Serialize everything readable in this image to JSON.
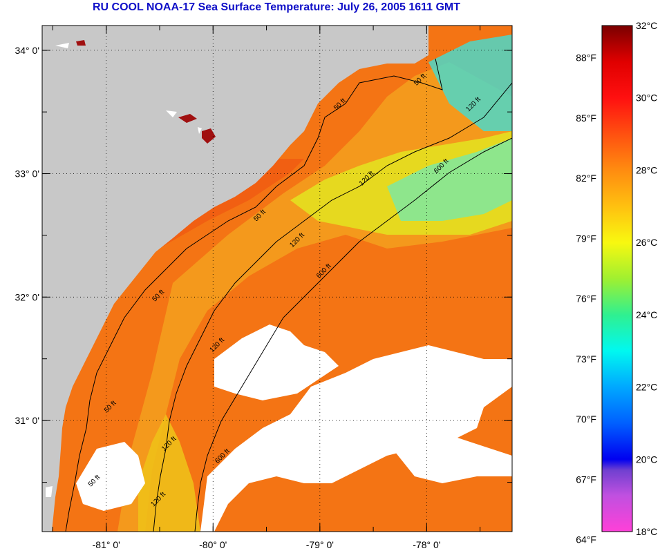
{
  "title": "RU COOL  NOAA-17  Sea Surface Temperature:  July 26, 2005 1611 GMT",
  "map": {
    "lon_range": [
      -81.6,
      -77.2
    ],
    "lat_range": [
      30.1,
      34.2
    ],
    "lat_ticks": [
      {
        "value": 34,
        "label": "34° 0'"
      },
      {
        "value": 33,
        "label": "33° 0'"
      },
      {
        "value": 32,
        "label": "32° 0'"
      },
      {
        "value": 31,
        "label": "31° 0'"
      }
    ],
    "lon_ticks": [
      {
        "value": -81,
        "label": "-81° 0'"
      },
      {
        "value": -80,
        "label": "-80° 0'"
      },
      {
        "value": -79,
        "label": "-79° 0'"
      },
      {
        "value": -78,
        "label": "-78° 0'"
      }
    ],
    "minor_lat_step": 0.5,
    "minor_lon_step": 0.5,
    "gridlines": "dotted",
    "colors": {
      "land": "#c8c8c8",
      "cloud": "#ffffff",
      "sst_warm": "#f46a10",
      "sst_hot": "#e83010",
      "sst_mid": "#f8b018",
      "sst_cool": "#e8e010",
      "sst_cold": "#40e8b8"
    },
    "contour_labels": [
      {
        "text": "50 ft",
        "lon": -78.05,
        "lat": 33.75
      },
      {
        "text": "50 ft",
        "lon": -78.8,
        "lat": 33.55
      },
      {
        "text": "120 ft",
        "lon": -77.55,
        "lat": 33.55
      },
      {
        "text": "120 ft",
        "lon": -78.55,
        "lat": 32.95
      },
      {
        "text": "600 ft",
        "lon": -77.85,
        "lat": 33.05
      },
      {
        "text": "50 ft",
        "lon": -79.55,
        "lat": 32.65
      },
      {
        "text": "120 ft",
        "lon": -79.2,
        "lat": 32.45
      },
      {
        "text": "600 ft",
        "lon": -78.95,
        "lat": 32.2
      },
      {
        "text": "50 ft",
        "lon": -80.5,
        "lat": 32.0
      },
      {
        "text": "120 ft",
        "lon": -79.95,
        "lat": 31.6
      },
      {
        "text": "50 ft",
        "lon": -80.95,
        "lat": 31.1
      },
      {
        "text": "120 ft",
        "lon": -80.4,
        "lat": 30.8
      },
      {
        "text": "600 ft",
        "lon": -79.9,
        "lat": 30.7
      },
      {
        "text": "50 ft",
        "lon": -81.1,
        "lat": 30.5
      },
      {
        "text": "120 ft",
        "lon": -80.5,
        "lat": 30.35
      }
    ]
  },
  "colorbar": {
    "celsius_range": [
      18,
      32
    ],
    "celsius_labels": [
      {
        "value": 32,
        "label": "32°C"
      },
      {
        "value": 30,
        "label": "30°C"
      },
      {
        "value": 28,
        "label": "28°C"
      },
      {
        "value": 26,
        "label": "26°C"
      },
      {
        "value": 24,
        "label": "24°C"
      },
      {
        "value": 22,
        "label": "22°C"
      },
      {
        "value": 20,
        "label": "20°C"
      },
      {
        "value": 18,
        "label": "18°C"
      }
    ],
    "fahrenheit_labels": [
      {
        "value": 88,
        "label": "88°F"
      },
      {
        "value": 85,
        "label": "85°F"
      },
      {
        "value": 82,
        "label": "82°F"
      },
      {
        "value": 79,
        "label": "79°F"
      },
      {
        "value": 76,
        "label": "76°F"
      },
      {
        "value": 73,
        "label": "73°F"
      },
      {
        "value": 70,
        "label": "70°F"
      },
      {
        "value": 67,
        "label": "67°F"
      },
      {
        "value": 64,
        "label": "64°F"
      }
    ],
    "gradient_stops": [
      {
        "celsius": 32,
        "color": "#7a0000"
      },
      {
        "celsius": 31,
        "color": "#e00000"
      },
      {
        "celsius": 30,
        "color": "#ff1010"
      },
      {
        "celsius": 29,
        "color": "#ff5010"
      },
      {
        "celsius": 28,
        "color": "#ff8c10"
      },
      {
        "celsius": 27,
        "color": "#ffc010"
      },
      {
        "celsius": 26,
        "color": "#f8f810"
      },
      {
        "celsius": 25,
        "color": "#a0f030"
      },
      {
        "celsius": 24,
        "color": "#30f090"
      },
      {
        "celsius": 23,
        "color": "#00f8f0"
      },
      {
        "celsius": 22,
        "color": "#00a8ff"
      },
      {
        "celsius": 21,
        "color": "#0060ff"
      },
      {
        "celsius": 20,
        "color": "#0000f0"
      },
      {
        "celsius": 19.7,
        "color": "#7040d0"
      },
      {
        "celsius": 19,
        "color": "#c050e0"
      },
      {
        "celsius": 18,
        "color": "#ff40d8"
      }
    ]
  }
}
